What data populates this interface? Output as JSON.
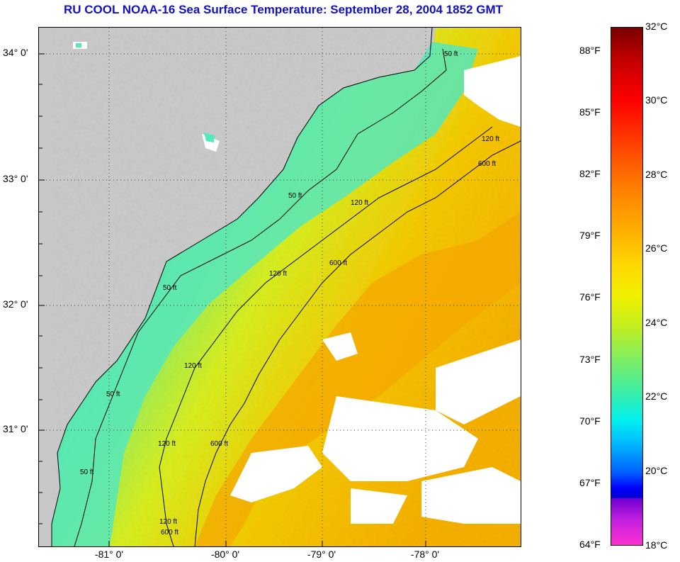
{
  "title": "RU COOL  NOAA-16  Sea Surface Temperature:  September 28, 2004 1852 GMT",
  "axes": {
    "lat_labels": [
      "34° 0'",
      "33° 0'",
      "32° 0'",
      "31° 0'"
    ],
    "lon_labels": [
      "-81° 0'",
      "-80° 0'",
      "-79° 0'",
      "-78° 0'"
    ]
  },
  "colorbar": {
    "fahrenheit": [
      "88°F",
      "85°F",
      "82°F",
      "79°F",
      "76°F",
      "73°F",
      "70°F",
      "67°F",
      "64°F"
    ],
    "celsius": [
      "32°C",
      "30°C",
      "28°C",
      "26°C",
      "24°C",
      "22°C",
      "20°C",
      "18°C"
    ],
    "colors": {
      "land": "#c8c8c8",
      "cloud": "#ffffff",
      "warm": "#f5a000",
      "mid": "#f0e000",
      "cool": "#50e8b0",
      "grid": "#404040"
    }
  },
  "contours": {
    "labels_50": [
      "50 ft",
      "50 ft",
      "50 ft",
      "50 ft",
      "50 ft"
    ],
    "labels_120": [
      "120 ft",
      "120 ft",
      "120 ft",
      "120 ft",
      "120 ft",
      "120 ft"
    ],
    "labels_600": [
      "600 ft",
      "600 ft",
      "600 ft",
      "600 ft"
    ]
  }
}
